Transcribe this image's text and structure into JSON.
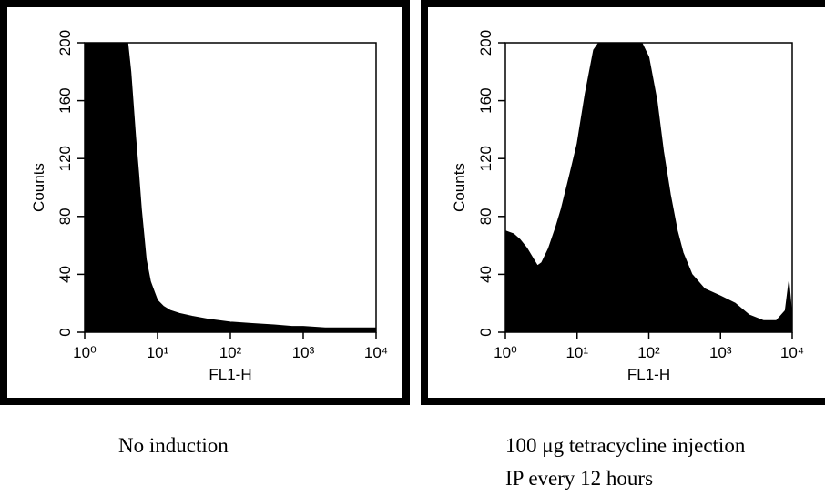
{
  "chart_data": [
    {
      "type": "area",
      "color": "#000000",
      "log_x": true,
      "xlabel": "FL1-H",
      "ylabel": "Counts",
      "caption": [
        "No induction"
      ],
      "x": [
        1,
        2,
        3,
        3.9,
        4.3,
        4.6,
        5,
        5.5,
        6,
        7,
        8,
        9,
        10,
        12,
        15,
        20,
        30,
        50,
        70,
        100,
        200,
        400,
        700,
        1000,
        2000,
        5000,
        10000
      ],
      "values": [
        200,
        200,
        200,
        200,
        180,
        160,
        135,
        110,
        85,
        50,
        35,
        28,
        22,
        18,
        15,
        13,
        11,
        9,
        8,
        7,
        6,
        5,
        4,
        4,
        3,
        3,
        3
      ],
      "xlim": [
        1,
        10000
      ],
      "xticks": [
        {
          "value": 1,
          "label": "10⁰"
        },
        {
          "value": 10,
          "label": "10¹"
        },
        {
          "value": 100,
          "label": "10²"
        },
        {
          "value": 1000,
          "label": "10³"
        },
        {
          "value": 10000,
          "label": "10⁴"
        }
      ],
      "ylim": [
        0,
        200
      ],
      "yticks": [
        0,
        40,
        80,
        120,
        160,
        200
      ]
    },
    {
      "type": "area",
      "color": "#000000",
      "log_x": true,
      "xlabel": "FL1-H",
      "ylabel": "Counts",
      "caption": [
        "100 μg tetracycline injection",
        "IP every 12 hours"
      ],
      "x": [
        1,
        1.3,
        1.6,
        2,
        2.5,
        2.8,
        3.2,
        4,
        5,
        6,
        8,
        10,
        13,
        17,
        20,
        30,
        50,
        80,
        100,
        130,
        160,
        200,
        250,
        300,
        400,
        600,
        1000,
        1600,
        2500,
        4000,
        6000,
        8000,
        9000,
        10000
      ],
      "values": [
        70,
        68,
        64,
        58,
        50,
        46,
        48,
        58,
        72,
        85,
        110,
        130,
        165,
        195,
        200,
        200,
        200,
        200,
        190,
        160,
        125,
        95,
        70,
        55,
        40,
        30,
        25,
        20,
        12,
        8,
        8,
        15,
        35,
        10
      ],
      "xlim": [
        1,
        10000
      ],
      "xticks": [
        {
          "value": 1,
          "label": "10⁰"
        },
        {
          "value": 10,
          "label": "10¹"
        },
        {
          "value": 100,
          "label": "10²"
        },
        {
          "value": 1000,
          "label": "10³"
        },
        {
          "value": 10000,
          "label": "10⁴"
        }
      ],
      "ylim": [
        0,
        200
      ],
      "yticks": [
        0,
        40,
        80,
        120,
        160,
        200
      ]
    }
  ]
}
